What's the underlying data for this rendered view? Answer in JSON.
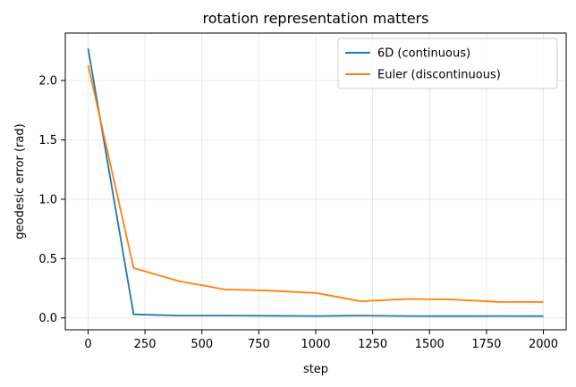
{
  "chart_data": {
    "type": "line",
    "title": "rotation representation matters",
    "xlabel": "step",
    "ylabel": "geodesic error (rad)",
    "xlim": [
      -100,
      2100
    ],
    "ylim": [
      -0.1,
      2.4
    ],
    "xticks": [
      0,
      250,
      500,
      750,
      1000,
      1250,
      1500,
      1750,
      2000
    ],
    "yticks": [
      0.0,
      0.5,
      1.0,
      1.5,
      2.0
    ],
    "xtick_labels": [
      "0",
      "250",
      "500",
      "750",
      "1000",
      "1250",
      "1500",
      "1750",
      "2000"
    ],
    "ytick_labels": [
      "0.0",
      "0.5",
      "1.0",
      "1.5",
      "2.0"
    ],
    "grid": true,
    "legend_position": "top-right",
    "x": [
      0,
      200,
      400,
      600,
      800,
      1000,
      1200,
      1400,
      1600,
      1800,
      2000
    ],
    "series": [
      {
        "name": "6D (continuous)",
        "color": "#1f77b4",
        "values": [
          2.27,
          0.03,
          0.02,
          0.02,
          0.018,
          0.016,
          0.02,
          0.016,
          0.015,
          0.016,
          0.015
        ]
      },
      {
        "name": "Euler (discontinuous)",
        "color": "#ff7f0e",
        "values": [
          2.13,
          0.42,
          0.31,
          0.24,
          0.23,
          0.21,
          0.14,
          0.16,
          0.155,
          0.135,
          0.135
        ]
      }
    ]
  }
}
